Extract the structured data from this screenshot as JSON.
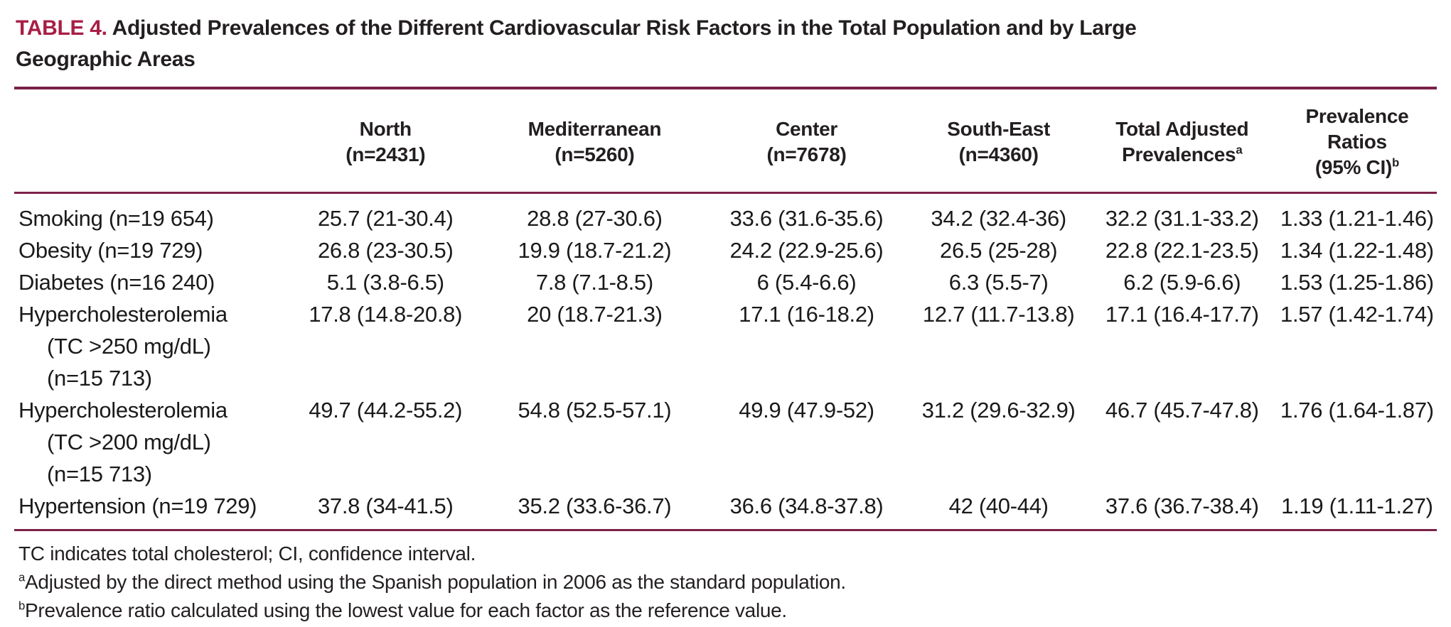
{
  "colors": {
    "rule": "#7a2149",
    "title_tag": "#a81e45",
    "text": "#231f20"
  },
  "title": {
    "tag": "TABLE 4.",
    "text": "Adjusted Prevalences of the Different Cardiovascular Risk Factors in the Total Population and by Large Geographic Areas"
  },
  "table": {
    "columns": [
      {
        "lines": [
          "North",
          "(n=2431)"
        ],
        "sup": ""
      },
      {
        "lines": [
          "Mediterranean",
          "(n=5260)"
        ],
        "sup": ""
      },
      {
        "lines": [
          "Center",
          "(n=7678)"
        ],
        "sup": ""
      },
      {
        "lines": [
          "South-East",
          "(n=4360)"
        ],
        "sup": ""
      },
      {
        "lines": [
          "Total Adjusted",
          "Prevalences"
        ],
        "sup": "a"
      },
      {
        "lines": [
          "Prevalence",
          "Ratios",
          "(95% CI)"
        ],
        "sup": "b"
      }
    ],
    "rows": [
      {
        "label_lines": [
          "Smoking (n=19 654)"
        ],
        "values": [
          "25.7 (21-30.4)",
          "28.8 (27-30.6)",
          "33.6 (31.6-35.6)",
          "34.2 (32.4-36)",
          "32.2 (31.1-33.2)",
          "1.33 (1.21-1.46)"
        ]
      },
      {
        "label_lines": [
          "Obesity (n=19 729)"
        ],
        "values": [
          "26.8 (23-30.5)",
          "19.9 (18.7-21.2)",
          "24.2 (22.9-25.6)",
          "26.5 (25-28)",
          "22.8 (22.1-23.5)",
          "1.34 (1.22-1.48)"
        ]
      },
      {
        "label_lines": [
          "Diabetes (n=16 240)"
        ],
        "values": [
          "5.1 (3.8-6.5)",
          "7.8 (7.1-8.5)",
          "6 (5.4-6.6)",
          "6.3 (5.5-7)",
          "6.2 (5.9-6.6)",
          "1.53 (1.25-1.86)"
        ]
      },
      {
        "label_lines": [
          "Hypercholesterolemia",
          "(TC >250 mg/dL)",
          "(n=15 713)"
        ],
        "values": [
          "17.8 (14.8-20.8)",
          "20 (18.7-21.3)",
          "17.1 (16-18.2)",
          "12.7 (11.7-13.8)",
          "17.1 (16.4-17.7)",
          "1.57 (1.42-1.74)"
        ]
      },
      {
        "label_lines": [
          "Hypercholesterolemia",
          "(TC >200 mg/dL)",
          "(n=15 713)"
        ],
        "values": [
          "49.7 (44.2-55.2)",
          "54.8 (52.5-57.1)",
          "49.9 (47.9-52)",
          "31.2 (29.6-32.9)",
          "46.7 (45.7-47.8)",
          "1.76 (1.64-1.87)"
        ]
      },
      {
        "label_lines": [
          "Hypertension (n=19 729)"
        ],
        "values": [
          "37.8 (34-41.5)",
          "35.2 (33.6-36.7)",
          "36.6 (34.8-37.8)",
          "42 (40-44)",
          "37.6 (36.7-38.4)",
          "1.19 (1.11-1.27)"
        ]
      }
    ]
  },
  "footnotes": [
    {
      "sup": "",
      "text": "TC indicates total cholesterol; CI, confidence interval."
    },
    {
      "sup": "a",
      "text": "Adjusted by the direct method using the Spanish population in 2006 as the standard population."
    },
    {
      "sup": "b",
      "text": "Prevalence ratio calculated using the lowest value for each factor as the reference value."
    }
  ]
}
